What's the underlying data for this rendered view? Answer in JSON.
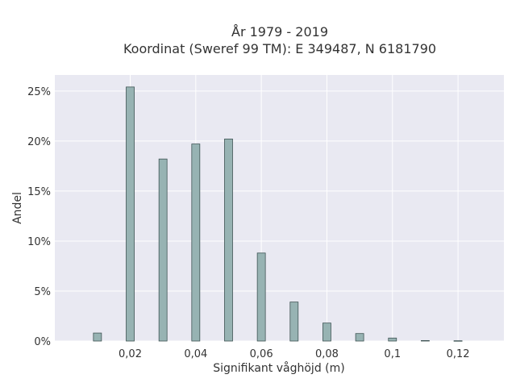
{
  "chart_data": {
    "type": "bar",
    "title_line1": "År 1979 - 2019",
    "title_line2": "Koordinat (Sweref 99 TM): E 349487, N 6181790",
    "xlabel": "Signifikant våghöjd (m)",
    "ylabel": "Andel",
    "x": [
      0.01,
      0.02,
      0.03,
      0.04,
      0.05,
      0.06,
      0.07,
      0.08,
      0.09,
      0.1,
      0.11,
      0.12
    ],
    "values": [
      0.8,
      25.4,
      18.2,
      19.7,
      20.2,
      8.8,
      3.9,
      1.8,
      0.75,
      0.3,
      0.05,
      0.03
    ],
    "xlim": [
      -0.003,
      0.134
    ],
    "ylim": [
      0,
      26.6
    ],
    "xticks": [
      {
        "value": 0.02,
        "label": "0,02"
      },
      {
        "value": 0.04,
        "label": "0,04"
      },
      {
        "value": 0.06,
        "label": "0,06"
      },
      {
        "value": 0.08,
        "label": "0,08"
      },
      {
        "value": 0.1,
        "label": "0,1"
      },
      {
        "value": 0.12,
        "label": "0,12"
      }
    ],
    "yticks": [
      {
        "value": 0,
        "label": "0%"
      },
      {
        "value": 5,
        "label": "5%"
      },
      {
        "value": 10,
        "label": "10%"
      },
      {
        "value": 15,
        "label": "15%"
      },
      {
        "value": 20,
        "label": "20%"
      },
      {
        "value": 25,
        "label": "25%"
      }
    ],
    "grid": true,
    "colors": {
      "bar_fill": "#97b3b3",
      "bar_stroke": "#3f5454",
      "plot_bg": "#e9e9f2",
      "grid": "#ffffff"
    }
  }
}
